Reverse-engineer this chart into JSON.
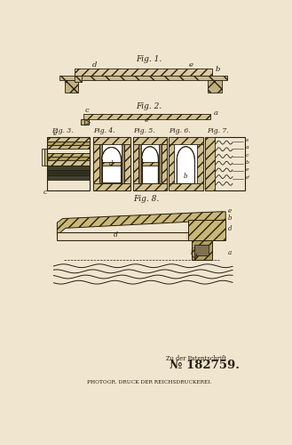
{
  "bg_color": "#f0e6d0",
  "line_color": "#2a1f0f",
  "title_fig1": "Fig. 1.",
  "title_fig2": "Fig. 2.",
  "title_fig3": "Fig. 3.",
  "title_fig4": "Fig. 4.",
  "title_fig5": "Fig. 5.",
  "title_fig6": "Fig. 6.",
  "title_fig7": "Fig. 7.",
  "title_fig8": "Fig. 8.",
  "patent_text": "Zu der Patentschrift",
  "patent_number": "№ 182759.",
  "bottom_text": "PHOTOGR. DRUCK DER REICHSDRUCKEREI.",
  "fig1_label_d": "d",
  "fig1_label_e": "e",
  "fig1_label_b": "b",
  "fig2_label_c": "c",
  "fig2_label_e": "e",
  "fig2_label_a": "a",
  "fig3_label_e": "e",
  "fig3_label_c": "c",
  "fig4_label_d": "d",
  "fig6_label_b": "b",
  "fig7_labels": [
    "s",
    "a",
    "c",
    "b",
    "e",
    "e'"
  ],
  "fig8_label_d1": "d",
  "fig8_label_e": "e",
  "fig8_label_b": "b",
  "fig8_label_d2": "d",
  "fig8_label_f": "f",
  "fig8_label_a": "a"
}
